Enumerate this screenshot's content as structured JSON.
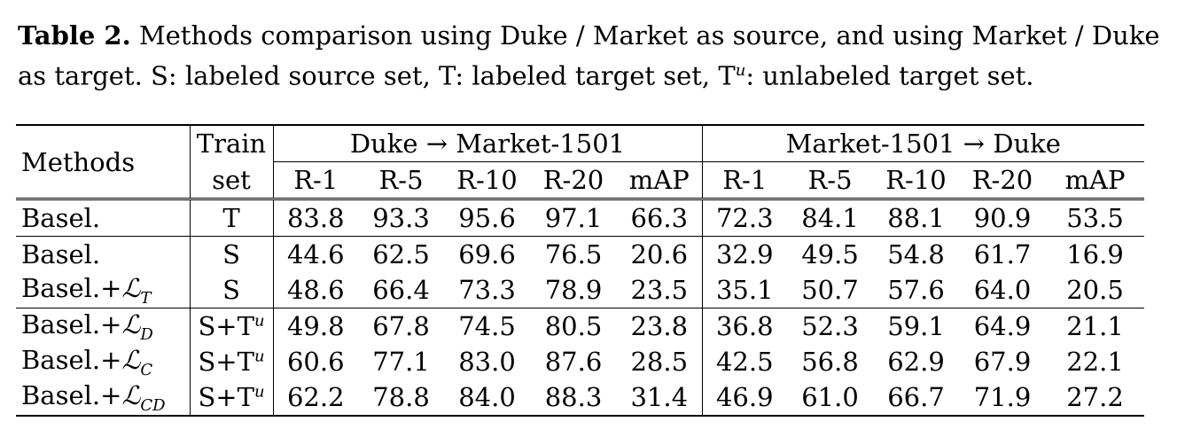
{
  "caption": {
    "label": "Table 2.",
    "text_part1": "Methods comparison using Duke / Market as source, and using Market / Duke as target. S: labeled source set, T: labeled target set, T",
    "text_sup": "u",
    "text_part2": ": unlabeled target set."
  },
  "table": {
    "header": {
      "methods": "Methods",
      "train_set_line1": "Train",
      "train_set_line2": "set",
      "group1": "Duke → Market-1501",
      "group2": "Market-1501 → Duke",
      "metrics": [
        "R-1",
        "R-5",
        "R-10",
        "R-20",
        "mAP"
      ]
    },
    "rows": [
      {
        "method_base": "Basel.",
        "method_loss": "",
        "method_sub": "",
        "set_base": "T",
        "set_sup": "",
        "values": [
          "83.8",
          "93.3",
          "95.6",
          "97.1",
          "66.3",
          "72.3",
          "84.1",
          "88.1",
          "90.9",
          "53.5"
        ]
      },
      {
        "method_base": "Basel.",
        "method_loss": "",
        "method_sub": "",
        "set_base": "S",
        "set_sup": "",
        "values": [
          "44.6",
          "62.5",
          "69.6",
          "76.5",
          "20.6",
          "32.9",
          "49.5",
          "54.8",
          "61.7",
          "16.9"
        ]
      },
      {
        "method_base": "Basel.+",
        "method_loss": "ℒ",
        "method_sub": "T",
        "set_base": "S",
        "set_sup": "",
        "values": [
          "48.6",
          "66.4",
          "73.3",
          "78.9",
          "23.5",
          "35.1",
          "50.7",
          "57.6",
          "64.0",
          "20.5"
        ]
      },
      {
        "method_base": "Basel.+",
        "method_loss": "ℒ",
        "method_sub": "D",
        "set_base": "S+T",
        "set_sup": "u",
        "values": [
          "49.8",
          "67.8",
          "74.5",
          "80.5",
          "23.8",
          "36.8",
          "52.3",
          "59.1",
          "64.9",
          "21.1"
        ]
      },
      {
        "method_base": "Basel.+",
        "method_loss": "ℒ",
        "method_sub": "C",
        "set_base": "S+T",
        "set_sup": "u",
        "values": [
          "60.6",
          "77.1",
          "83.0",
          "87.6",
          "28.5",
          "42.5",
          "56.8",
          "62.9",
          "67.9",
          "22.1"
        ]
      },
      {
        "method_base": "Basel.+",
        "method_loss": "ℒ",
        "method_sub": "CD",
        "set_base": "S+T",
        "set_sup": "u",
        "values": [
          "62.2",
          "78.8",
          "84.0",
          "88.3",
          "31.4",
          "46.9",
          "61.0",
          "66.7",
          "71.9",
          "27.2"
        ]
      }
    ]
  }
}
